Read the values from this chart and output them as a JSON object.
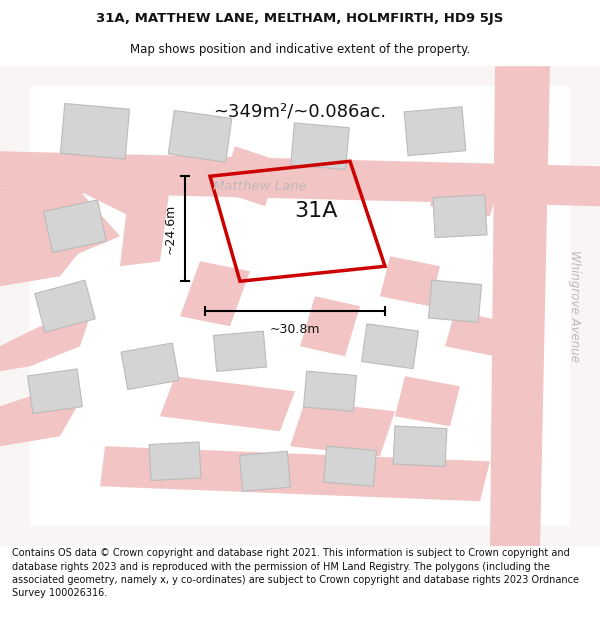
{
  "title_line1": "31A, MATTHEW LANE, MELTHAM, HOLMFIRTH, HD9 5JS",
  "title_line2": "Map shows position and indicative extent of the property.",
  "footer_text": "Contains OS data © Crown copyright and database right 2021. This information is subject to Crown copyright and database rights 2023 and is reproduced with the permission of HM Land Registry. The polygons (including the associated geometry, namely x, y co-ordinates) are subject to Crown copyright and database rights 2023 Ordnance Survey 100026316.",
  "area_label": "~349m²/~0.086ac.",
  "label_31A": "31A",
  "dim_height": "~24.6m",
  "dim_width": "~30.8m",
  "street_label_matthew": "Matthew Lane",
  "street_label_whingrove": "Whingrove Avenue",
  "road_color": "#f2c4c4",
  "road_line_color": "#e8a8a8",
  "building_fill": "#d4d4d4",
  "building_edge": "#bbbbbb",
  "plot_color": "#cc0000",
  "map_bg": "#ffffff",
  "outer_bg": "#f5eded",
  "title_fontsize": 9.5,
  "subtitle_fontsize": 8.5,
  "footer_fontsize": 7.0,
  "street_fontsize": 9.5,
  "whingrove_fontsize": 8.5,
  "area_fontsize": 13,
  "label_fontsize": 16,
  "dim_fontsize": 9
}
